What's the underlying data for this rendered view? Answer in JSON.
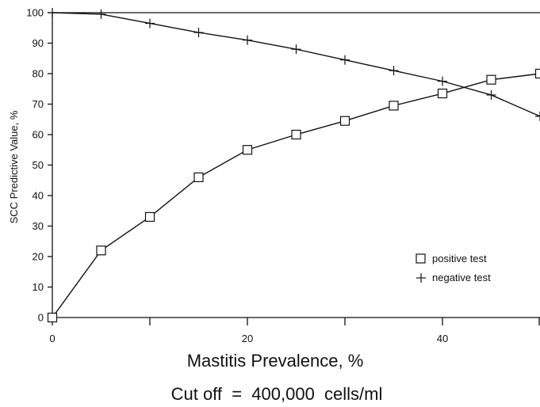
{
  "chart_data": {
    "type": "line",
    "xlabel": "Mastitis Prevalence, %",
    "ylabel": "SCC Predictive Value, %",
    "footnote": "Cut off  =  400,000  cells/ml",
    "xlim": [
      0,
      50
    ],
    "ylim": [
      0,
      100
    ],
    "x_ticks": [
      0,
      20,
      40
    ],
    "x_minor_ticks": [
      10,
      30,
      50
    ],
    "y_ticks": [
      0,
      10,
      20,
      30,
      40,
      50,
      60,
      70,
      80,
      90,
      100
    ],
    "grid": false,
    "legend_position": "right",
    "series": [
      {
        "name": "positive test",
        "marker": "square",
        "x": [
          0,
          5,
          10,
          15,
          20,
          25,
          30,
          35,
          40,
          45,
          50
        ],
        "y": [
          0,
          22,
          33,
          46,
          55,
          60,
          64.5,
          69.5,
          73.5,
          78,
          80
        ]
      },
      {
        "name": "negative test",
        "marker": "plus",
        "x": [
          0,
          5,
          10,
          15,
          20,
          25,
          30,
          35,
          40,
          45,
          50
        ],
        "y": [
          100,
          99.5,
          96.5,
          93.5,
          91,
          88,
          84.5,
          81,
          77.5,
          73,
          66
        ]
      }
    ]
  }
}
